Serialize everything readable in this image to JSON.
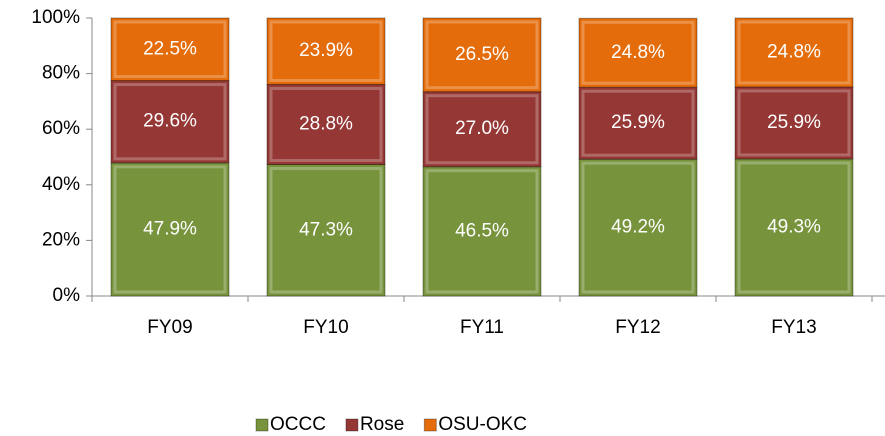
{
  "chart_data": {
    "type": "stacked_bar",
    "categories": [
      "FY09",
      "FY10",
      "FY11",
      "FY12",
      "FY13"
    ],
    "series": [
      {
        "name": "OCCC",
        "color": "#77933c",
        "values": [
          47.9,
          47.3,
          46.5,
          49.2,
          49.3
        ],
        "value_labels": [
          "47.9%",
          "47.3%",
          "46.5%",
          "49.2%",
          "49.3%"
        ]
      },
      {
        "name": "Rose",
        "color": "#953735",
        "values": [
          29.6,
          28.8,
          27.0,
          25.9,
          25.9
        ],
        "value_labels": [
          "29.6%",
          "28.8%",
          "27.0%",
          "25.9%",
          "25.9%"
        ]
      },
      {
        "name": "OSU-OKC",
        "color": "#e46c0a",
        "values": [
          22.5,
          23.9,
          26.5,
          24.8,
          24.8
        ],
        "value_labels": [
          "22.5%",
          "23.9%",
          "26.5%",
          "24.8%",
          "24.8%"
        ]
      }
    ],
    "ylim": [
      0,
      100
    ],
    "yticks": [
      {
        "value": 0,
        "label": "0%"
      },
      {
        "value": 20,
        "label": "20%"
      },
      {
        "value": 40,
        "label": "40%"
      },
      {
        "value": 60,
        "label": "60%"
      },
      {
        "value": 80,
        "label": "80%"
      },
      {
        "value": 100,
        "label": "100%"
      }
    ],
    "legend": "bottom"
  }
}
